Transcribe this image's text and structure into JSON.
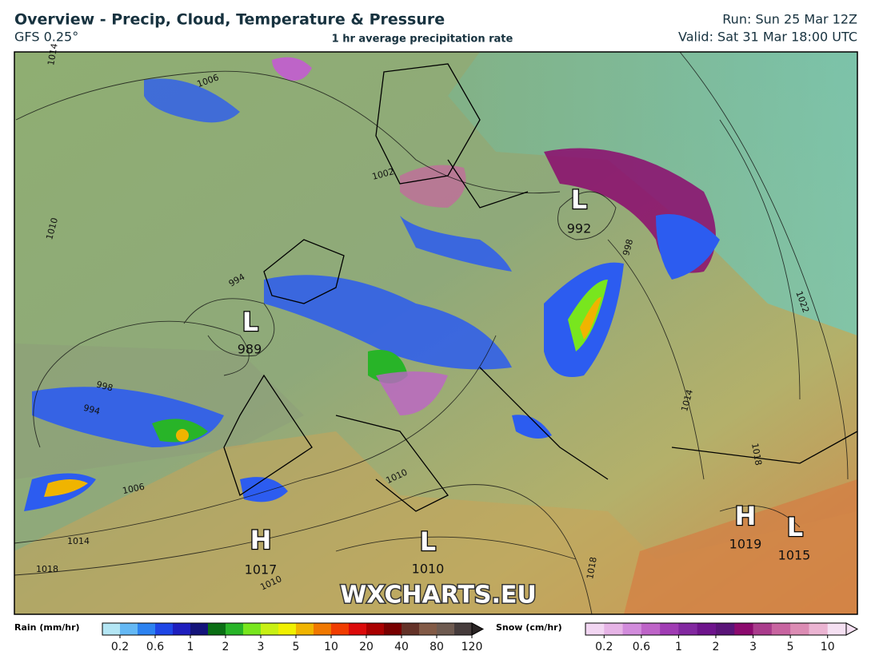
{
  "header": {
    "title": "Overview - Precip, Cloud, Temperature & Pressure",
    "model": "GFS 0.25°",
    "subtitle": "1 hr average precipitation rate",
    "run": "Run: Sun 25 Mar 12Z",
    "valid": "Valid: Sat 31 Mar 18:00 UTC"
  },
  "centers": [
    {
      "kind": "L",
      "pressure": "989"
    },
    {
      "kind": "L",
      "pressure": "992"
    },
    {
      "kind": "H",
      "pressure": "1017"
    },
    {
      "kind": "L",
      "pressure": "1010"
    },
    {
      "kind": "H",
      "pressure": "1019"
    },
    {
      "kind": "L",
      "pressure": "1015"
    }
  ],
  "isobar_labels": [
    "1014",
    "1006",
    "1010",
    "1002",
    "994",
    "998",
    "994",
    "1006",
    "1014",
    "1018",
    "1010",
    "1010",
    "1014",
    "1018",
    "1022",
    "1018",
    "998"
  ],
  "watermark": "WXCHARTS.EU",
  "legend": {
    "rain": {
      "label": "Rain (mm/hr)",
      "ticks": [
        0.2,
        0.6,
        1,
        2,
        3,
        5,
        10,
        20,
        40,
        80,
        120
      ],
      "colors": [
        "#b4e6f4",
        "#64b8f4",
        "#2c82f0",
        "#1e46e6",
        "#1e1ebe",
        "#14147a",
        "#0a6e14",
        "#28b428",
        "#78e61e",
        "#c8f014",
        "#f0f000",
        "#f0b400",
        "#f07800",
        "#f03c00",
        "#dc0a0a",
        "#aa0000",
        "#780000",
        "#643228",
        "#825a46",
        "#6e5a50",
        "#463c3c"
      ]
    },
    "snow": {
      "label": "Snow (cm/hr)",
      "ticks": [
        0.2,
        0.6,
        1,
        2,
        3,
        5,
        10
      ],
      "colors": [
        "#f2d6f2",
        "#e6b4e6",
        "#d28cdc",
        "#be64c8",
        "#a03cb4",
        "#8228a0",
        "#6e148c",
        "#5a1478",
        "#8c0a6e",
        "#aa3c8c",
        "#c864a0",
        "#dc8cb4",
        "#ebb4d2",
        "#f5e0f2"
      ]
    }
  }
}
